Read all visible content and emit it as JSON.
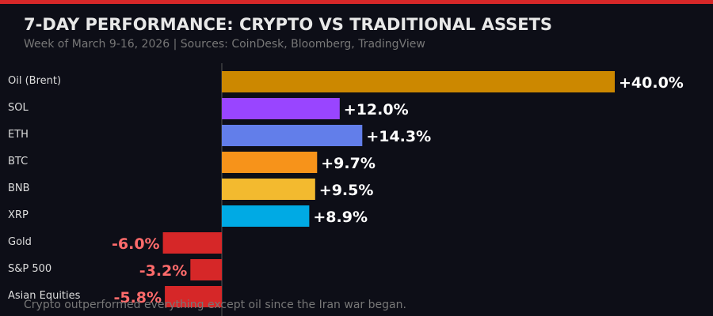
{
  "chart_data": {
    "type": "barh",
    "title": "7-DAY PERFORMANCE: CRYPTO VS TRADITIONAL ASSETS",
    "subtitle": "Week of March 9-16, 2026 | Sources: CoinDesk, Bloomberg, TradingView",
    "footnote": "Crypto outperformed everything except oil since the Iran war began.",
    "categories": [
      "Oil (Brent)",
      "SOL",
      "ETH",
      "BTC",
      "BNB",
      "XRP",
      "Gold",
      "S&P 500",
      "Asian Equities"
    ],
    "values": [
      40.0,
      12.0,
      14.3,
      9.7,
      9.5,
      8.9,
      -6.0,
      -3.2,
      -5.8
    ],
    "value_labels": [
      "+40.0%",
      "+12.0%",
      "+14.3%",
      "+9.7%",
      "+9.5%",
      "+8.9%",
      "-6.0%",
      "-3.2%",
      "-5.8%"
    ],
    "colors": [
      "#cc8800",
      "#9945ff",
      "#627eea",
      "#f7931a",
      "#f3ba2f",
      "#00aae4",
      "#d62728",
      "#d62728",
      "#d62728"
    ]
  }
}
